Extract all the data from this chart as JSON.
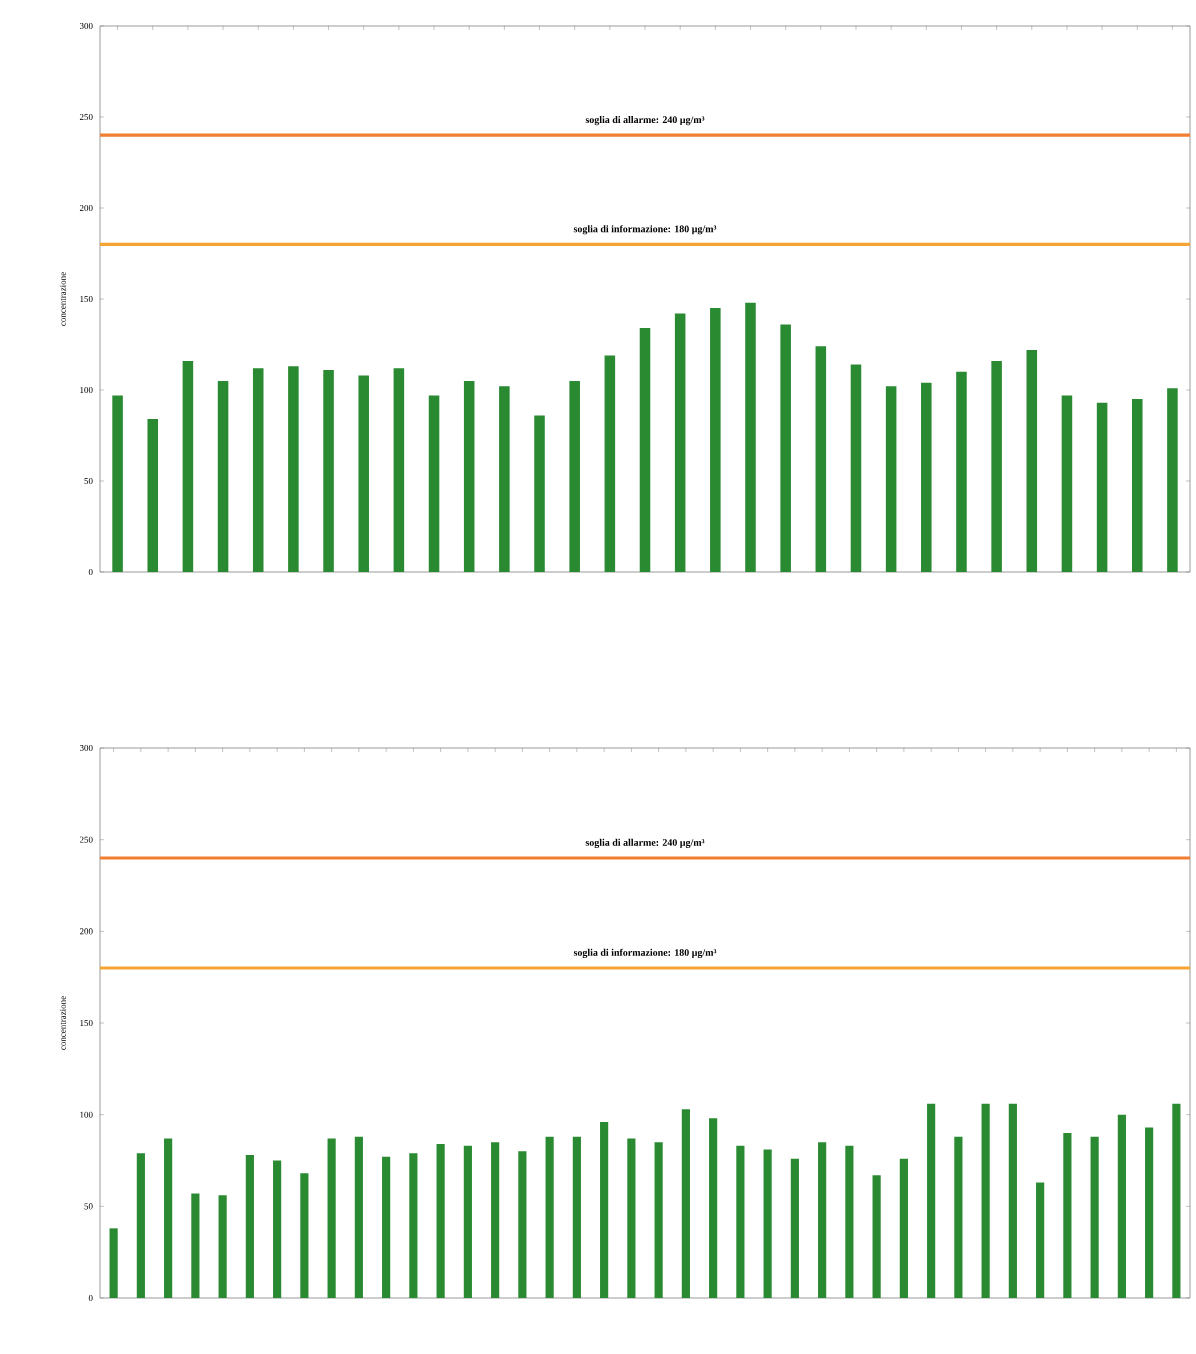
{
  "chart_data": [
    {
      "type": "bar",
      "ylabel": "concentrazione",
      "ylim": [
        0,
        300
      ],
      "yticks": [
        0,
        50,
        100,
        150,
        200,
        250,
        300
      ],
      "color": "#2a8a32",
      "categories": [
        null,
        null,
        null,
        null,
        null,
        null,
        null,
        null,
        null,
        null,
        null,
        null,
        null,
        null,
        null,
        null,
        null,
        null,
        null,
        null,
        null,
        null,
        null,
        null,
        null,
        null,
        null,
        null,
        null,
        null,
        null
      ],
      "values": [
        97,
        84,
        116,
        105,
        112,
        113,
        111,
        108,
        112,
        97,
        105,
        102,
        86,
        105,
        119,
        134,
        142,
        145,
        148,
        136,
        124,
        114,
        102,
        104,
        110,
        116,
        122,
        97,
        93,
        95,
        101
      ],
      "ref_lines": [
        {
          "axis": "y",
          "value": 240,
          "label": "soglia di allarme: 240 µg/m³",
          "color": "#f07e32"
        },
        {
          "axis": "y",
          "value": 180,
          "label": "soglia di informazione: 180 µg/m³",
          "color": "#f5a434"
        }
      ]
    },
    {
      "type": "bar",
      "ylabel": "concentrazione",
      "ylim": [
        0,
        300
      ],
      "yticks": [
        0,
        50,
        100,
        150,
        200,
        250,
        300
      ],
      "color": "#2a8a32",
      "categories": [
        null,
        null,
        null,
        null,
        null,
        null,
        null,
        null,
        null,
        null,
        null,
        null,
        null,
        null,
        null,
        null,
        null,
        null,
        null,
        null,
        null,
        null,
        null,
        null,
        null,
        null,
        null,
        null,
        null,
        null,
        null,
        null,
        null,
        null,
        null,
        null,
        null,
        null,
        null,
        null
      ],
      "values": [
        38,
        79,
        87,
        57,
        56,
        78,
        75,
        68,
        87,
        88,
        77,
        79,
        84,
        83,
        85,
        80,
        88,
        88,
        96,
        87,
        85,
        103,
        98,
        83,
        81,
        76,
        85,
        83,
        67,
        76,
        106,
        88,
        106,
        106,
        63,
        90,
        88,
        100,
        93,
        106
      ],
      "ref_lines": [
        {
          "axis": "y",
          "value": 240,
          "label": "soglia di allarme: 240 µg/m³",
          "color": "#f07e32"
        },
        {
          "axis": "y",
          "value": 180,
          "label": "soglia di informazione: 180 µg/m³",
          "color": "#f5a434"
        }
      ]
    }
  ]
}
